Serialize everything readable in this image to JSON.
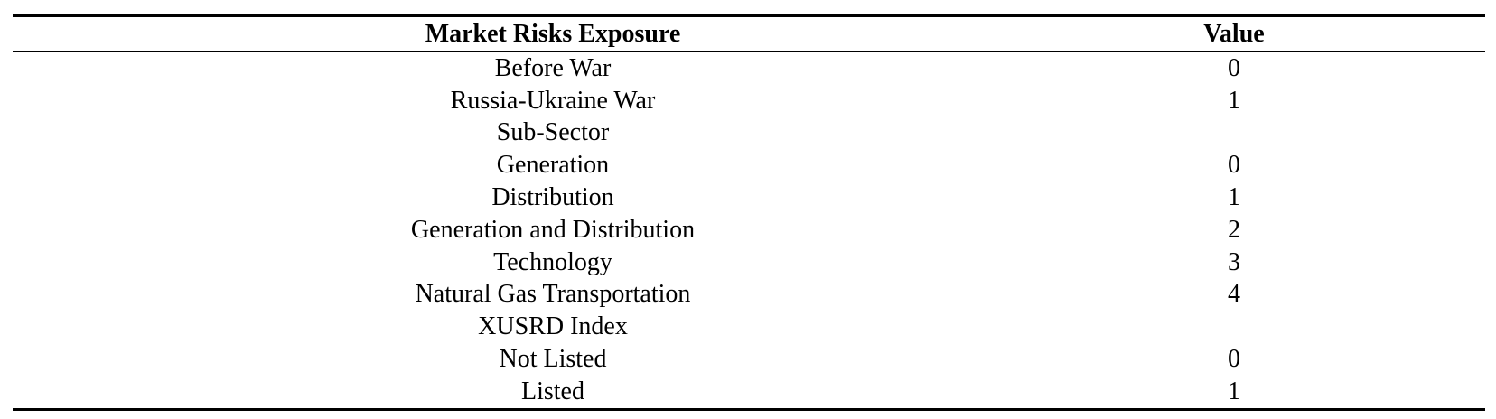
{
  "table": {
    "headers": {
      "label": "Market Risks Exposure",
      "value": "Value"
    },
    "rows": [
      {
        "label": "Before War",
        "value": "0"
      },
      {
        "label": "Russia-Ukraine War",
        "value": "1"
      },
      {
        "label": "Sub-Sector",
        "value": ""
      },
      {
        "label": "Generation",
        "value": "0"
      },
      {
        "label": "Distribution",
        "value": "1"
      },
      {
        "label": "Generation and Distribution",
        "value": "2"
      },
      {
        "label": "Technology",
        "value": "3"
      },
      {
        "label": "Natural Gas Transportation",
        "value": "4"
      },
      {
        "label": "XUSRD Index",
        "value": ""
      },
      {
        "label": "Not Listed",
        "value": "0"
      },
      {
        "label": "Listed",
        "value": "1"
      }
    ]
  }
}
